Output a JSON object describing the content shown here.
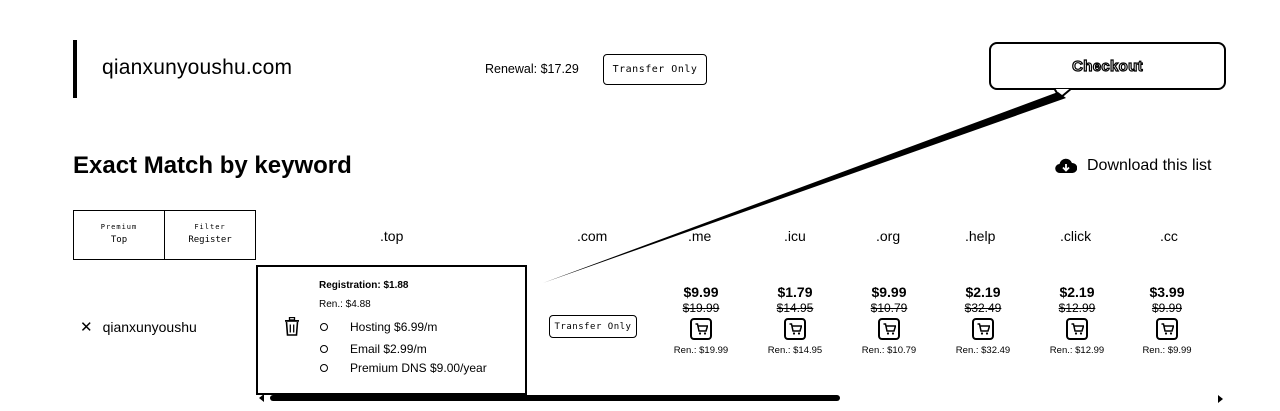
{
  "domain": {
    "name": "qianxunyoushu.com",
    "renewal": "Renewal: $17.29",
    "action_label": "Transfer Only"
  },
  "checkout_label": "Checkout",
  "section": {
    "title": "Exact Match by keyword",
    "download_label": "Download this list",
    "download_icon": "cloud-download-icon"
  },
  "segment": {
    "left_top": "Premium",
    "left_bottom": "Top",
    "right_top": "Filter",
    "right_bottom": "Register"
  },
  "tlds": [
    ".top",
    ".com",
    ".me",
    ".icu",
    ".org",
    ".help",
    ".click",
    ".cc"
  ],
  "row": {
    "keyword": "qianxunyoushu",
    "remove_icon": "close-icon",
    "action_label": "Transfer Only"
  },
  "popup": {
    "registration": "Registration: $1.88",
    "renewal": "Ren.: $4.88",
    "delete_icon": "trash-icon",
    "options": [
      {
        "label": "Hosting $6.99/m"
      },
      {
        "label": "Email $2.99/m"
      },
      {
        "label": "Premium DNS $9.00/year"
      }
    ]
  },
  "prices": [
    {
      "tld": ".me",
      "price": "$9.99",
      "old": "$19.99",
      "ren": "Ren.: $19.99"
    },
    {
      "tld": ".icu",
      "price": "$1.79",
      "old": "$14.95",
      "ren": "Ren.: $14.95"
    },
    {
      "tld": ".org",
      "price": "$9.99",
      "old": "$10.79",
      "ren": "Ren.: $10.79"
    },
    {
      "tld": ".help",
      "price": "$2.19",
      "old": "$32.49",
      "ren": "Ren.: $32.49"
    },
    {
      "tld": ".click",
      "price": "$2.19",
      "old": "$12.99",
      "ren": "Ren.: $12.99"
    },
    {
      "tld": ".cc",
      "price": "$3.99",
      "old": "$9.99",
      "ren": "Ren.: $9.99"
    }
  ],
  "colors": {
    "ink": "#000000",
    "background": "#ffffff"
  }
}
